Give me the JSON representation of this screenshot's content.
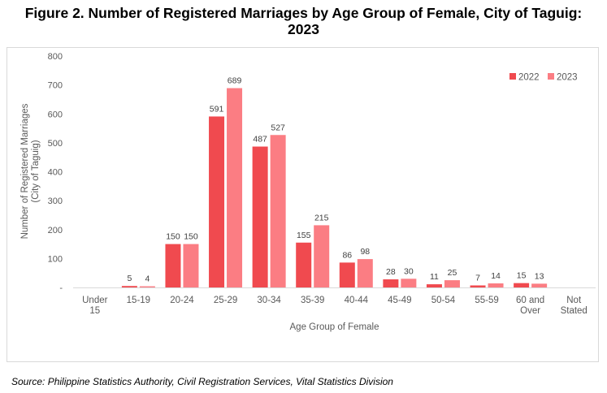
{
  "figure": {
    "title_line1": "Figure 2.  Number of Registered Marriages by Age Group of Female, City of Taguig:",
    "title_line2": "2023",
    "source": "Source: Philippine Statistics Authority, Civil Registration Services, Vital Statistics Division"
  },
  "chart_data": {
    "type": "bar",
    "xlabel": "Age Group of Female",
    "ylabel_lines": [
      "Number of Registered Marriages",
      "(City of Taguig)"
    ],
    "ylim": [
      0,
      800
    ],
    "yticks": [
      0,
      100,
      200,
      300,
      400,
      500,
      600,
      700,
      800
    ],
    "ytick_labels": [
      "-",
      "100",
      "200",
      "300",
      "400",
      "500",
      "600",
      "700",
      "800"
    ],
    "grid": false,
    "legend_position": "top-right",
    "categories": [
      [
        "Under",
        "15"
      ],
      [
        "15-19"
      ],
      [
        "20-24"
      ],
      [
        "25-29"
      ],
      [
        "30-34"
      ],
      [
        "35-39"
      ],
      [
        "40-44"
      ],
      [
        "45-49"
      ],
      [
        "50-54"
      ],
      [
        "55-59"
      ],
      [
        "60 and",
        "Over"
      ],
      [
        "Not",
        "Stated"
      ]
    ],
    "series": [
      {
        "name": "2022",
        "color": "#f04a4f",
        "values": [
          0,
          5,
          150,
          591,
          487,
          155,
          86,
          28,
          11,
          7,
          15,
          0
        ]
      },
      {
        "name": "2023",
        "color": "#fb7d83",
        "values": [
          0,
          4,
          150,
          689,
          527,
          215,
          98,
          30,
          25,
          14,
          13,
          0
        ]
      }
    ],
    "data_labels": [
      [
        null,
        "5",
        "150",
        "591",
        "487",
        "155",
        "86",
        "28",
        "11",
        "7",
        "15",
        null
      ],
      [
        null,
        "4",
        "150",
        "689",
        "527",
        "215",
        "98",
        "30",
        "25",
        "14",
        "13",
        null
      ]
    ]
  }
}
